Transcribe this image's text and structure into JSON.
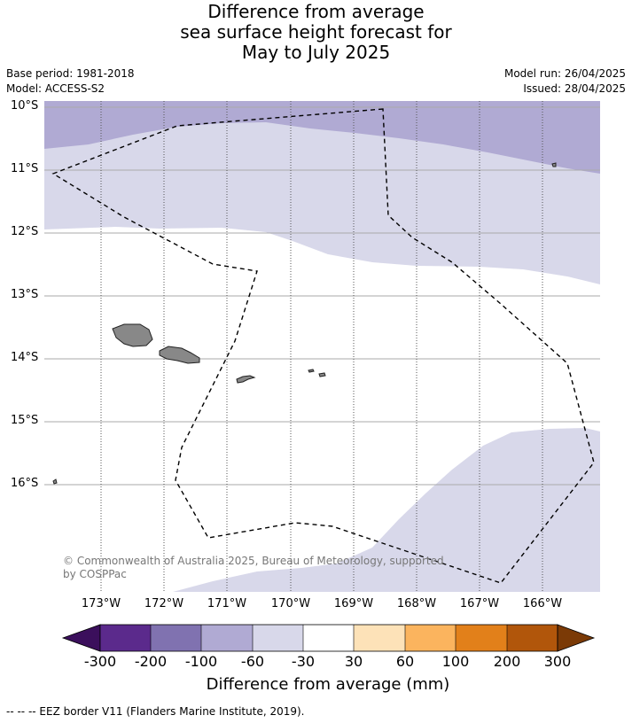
{
  "title": {
    "line1": "Difference from average",
    "line2": "sea surface height forecast for",
    "line3": "May to July 2025"
  },
  "meta": {
    "base_period": "Base period: 1981-2018",
    "model": "Model: ACCESS-S2",
    "model_run": "Model run: 26/04/2025",
    "issued": "Issued: 28/04/2025"
  },
  "map": {
    "lat_labels": [
      "10°S",
      "11°S",
      "12°S",
      "13°S",
      "14°S",
      "15°S",
      "16°S"
    ],
    "lon_labels": [
      "173°W",
      "172°W",
      "171°W",
      "170°W",
      "169°W",
      "168°W",
      "167°W",
      "166°W"
    ],
    "copyright": "© Commonwealth of Australia 2025, Bureau of Meteorology, supported by COSPPac",
    "colors": {
      "band_neg100_neg60": "#b0aad3",
      "band_neg60_neg30": "#d8d8ea",
      "land": "#888888",
      "ocean_neutral": "#ffffff",
      "gridline": "#aaaaaa"
    }
  },
  "colorbar": {
    "title": "Difference from average (mm)",
    "ticks": [
      "-300",
      "-200",
      "-100",
      "-60",
      "-30",
      "30",
      "60",
      "100",
      "200",
      "300"
    ],
    "colors": [
      "#3b0f5c",
      "#5b2a8c",
      "#8072b0",
      "#b0aad3",
      "#d8d8ea",
      "#ffffff",
      "#fde2b8",
      "#fbb45e",
      "#e2801a",
      "#b1560b",
      "#7b3a06"
    ]
  },
  "footnote": "--  --  -- EEZ border V11 (Flanders Marine Institute, 2019)."
}
